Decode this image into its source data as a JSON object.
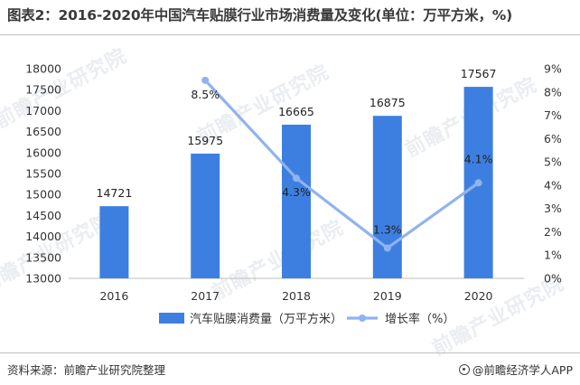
{
  "title": "图表2：2016-2020年中国汽车贴膜行业市场消费量及变化(单位：万平方米，%)",
  "source": "资料来源：前瞻产业研究院整理",
  "credit": "@前瞻经济学人APP",
  "watermark": "前瞻产业研究院",
  "colors": {
    "bar": "#3d7fe0",
    "line": "#8fb3ef",
    "axis": "#bfbfbf",
    "text": "#333333"
  },
  "chart_data": {
    "type": "bar",
    "categories": [
      "2016",
      "2017",
      "2018",
      "2019",
      "2020"
    ],
    "series": [
      {
        "name": "汽车贴膜消费量（万平方米）",
        "type": "bar",
        "axis": "left",
        "values": [
          14721,
          15975,
          16665,
          16875,
          17567
        ],
        "labels": [
          "14721",
          "15975",
          "16665",
          "16875",
          "17567"
        ]
      },
      {
        "name": "增长率（%）",
        "type": "line",
        "axis": "right",
        "values": [
          null,
          8.5,
          4.3,
          1.3,
          4.1
        ],
        "labels": [
          "",
          "8.5%",
          "4.3%",
          "1.3%",
          "4.1%"
        ]
      }
    ],
    "y_left": {
      "min": 13000,
      "max": 18000,
      "ticks": [
        "13000",
        "13500",
        "14000",
        "14500",
        "15000",
        "15500",
        "16000",
        "16500",
        "17000",
        "17500",
        "18000"
      ]
    },
    "y_right": {
      "min": 0,
      "max": 9,
      "ticks": [
        "0%",
        "1%",
        "2%",
        "3%",
        "4%",
        "5%",
        "6%",
        "7%",
        "8%",
        "9%"
      ]
    },
    "legend_position": "bottom",
    "grid": false
  }
}
